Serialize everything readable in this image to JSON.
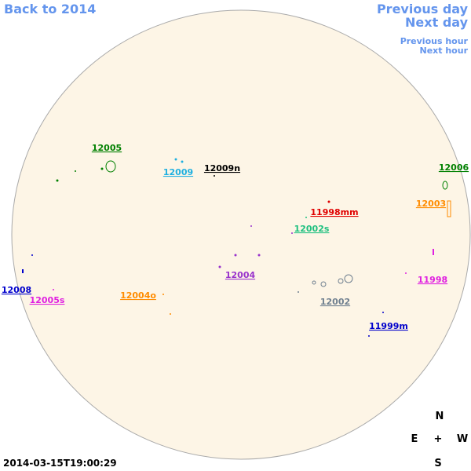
{
  "nav": {
    "back": "Back to 2014",
    "previous_day": "Previous day",
    "next_day": "Next day",
    "previous_hour": "Previous hour",
    "next_hour": "Next hour"
  },
  "regions": [
    {
      "label": "12005",
      "color": "#008000"
    },
    {
      "label": "12009",
      "color": "#20b0e0"
    },
    {
      "label": "12009n",
      "color": "#000000"
    },
    {
      "label": "12006",
      "color": "#008000"
    },
    {
      "label": "12003",
      "color": "#ff8c00"
    },
    {
      "label": "11998mm",
      "color": "#e00000"
    },
    {
      "label": "12002s",
      "color": "#20c080"
    },
    {
      "label": "12004",
      "color": "#9932cc"
    },
    {
      "label": "12008",
      "color": "#0000cc"
    },
    {
      "label": "12005s",
      "color": "#e020e0"
    },
    {
      "label": "12004o",
      "color": "#ff8c00"
    },
    {
      "label": "12002",
      "color": "#708090"
    },
    {
      "label": "11998",
      "color": "#e020e0"
    },
    {
      "label": "11999m",
      "color": "#0000cc"
    }
  ],
  "timestamp": "2014-03-15T19:00:29",
  "compass": {
    "north": "N",
    "east": "E",
    "center": "+",
    "west": "W",
    "south": "S"
  }
}
